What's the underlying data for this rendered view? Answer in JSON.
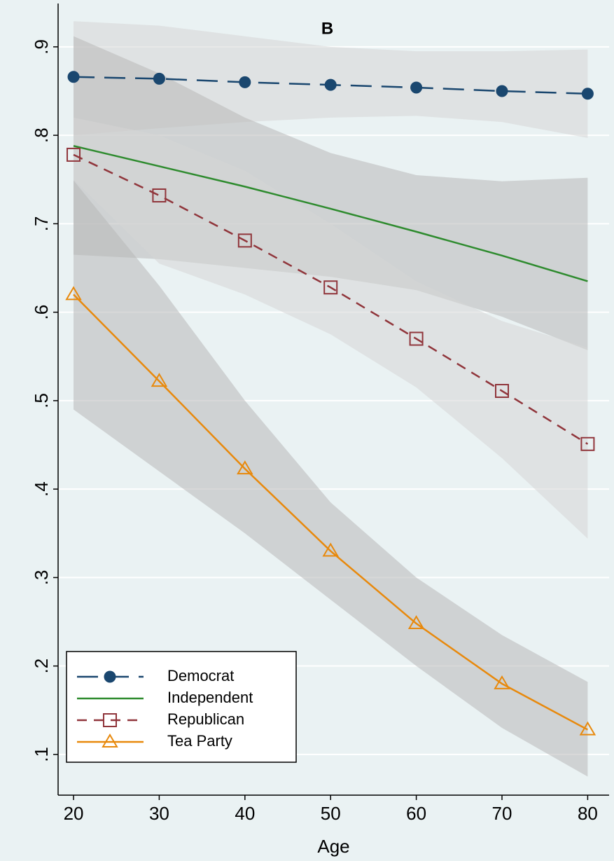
{
  "chart_data": {
    "type": "line",
    "title": "B",
    "x_label": "Age",
    "x": [
      20,
      30,
      40,
      50,
      60,
      70,
      80
    ],
    "xlim": [
      18.2,
      82.5
    ],
    "xticks": [
      20,
      30,
      40,
      50,
      60,
      70,
      80
    ],
    "ylim": [
      0.054,
      0.949
    ],
    "yticks": [
      {
        "value": 0.1,
        "label": ".1"
      },
      {
        "value": 0.2,
        "label": ".2"
      },
      {
        "value": 0.3,
        "label": ".3"
      },
      {
        "value": 0.4,
        "label": ".4"
      },
      {
        "value": 0.5,
        "label": ".5"
      },
      {
        "value": 0.6,
        "label": ".6"
      },
      {
        "value": 0.7,
        "label": ".7"
      },
      {
        "value": 0.8,
        "label": ".8"
      },
      {
        "value": 0.9,
        "label": ".9"
      }
    ],
    "grid": true,
    "legend": "lower-left",
    "background": "#eaf2f3",
    "series": [
      {
        "name": "Democrat",
        "color": "#1a476f",
        "dash": "long",
        "marker": "circle",
        "band_color": "#d6d6d6",
        "values": [
          0.866,
          0.864,
          0.86,
          0.857,
          0.854,
          0.85,
          0.847
        ],
        "ci_lower": [
          0.8,
          0.808,
          0.815,
          0.82,
          0.822,
          0.815,
          0.797
        ],
        "ci_upper": [
          0.929,
          0.924,
          0.912,
          0.9,
          0.895,
          0.895,
          0.897
        ]
      },
      {
        "name": "Independent",
        "color": "#2e8b2e",
        "dash": "solid",
        "marker": "none",
        "band_color": "#b8b8b8",
        "values": [
          0.788,
          0.765,
          0.742,
          0.717,
          0.691,
          0.664,
          0.635
        ],
        "ci_lower": [
          0.665,
          0.66,
          0.65,
          0.64,
          0.625,
          0.595,
          0.557
        ],
        "ci_upper": [
          0.912,
          0.87,
          0.82,
          0.78,
          0.755,
          0.748,
          0.752
        ]
      },
      {
        "name": "Republican",
        "color": "#90353b",
        "dash": "short",
        "marker": "square",
        "band_color": "#d6d6d6",
        "values": [
          0.778,
          0.732,
          0.681,
          0.628,
          0.57,
          0.511,
          0.451
        ],
        "ci_lower": [
          0.75,
          0.655,
          0.62,
          0.575,
          0.515,
          0.435,
          0.344
        ],
        "ci_upper": [
          0.82,
          0.8,
          0.76,
          0.7,
          0.635,
          0.59,
          0.56
        ]
      },
      {
        "name": "Tea Party",
        "color": "#e8890c",
        "dash": "solid",
        "marker": "triangle",
        "band_color": "#b8b8b8",
        "values": [
          0.62,
          0.522,
          0.423,
          0.33,
          0.248,
          0.18,
          0.128
        ],
        "ci_lower": [
          0.49,
          0.42,
          0.35,
          0.275,
          0.2,
          0.13,
          0.075
        ],
        "ci_upper": [
          0.749,
          0.63,
          0.5,
          0.385,
          0.3,
          0.235,
          0.182
        ]
      }
    ]
  }
}
